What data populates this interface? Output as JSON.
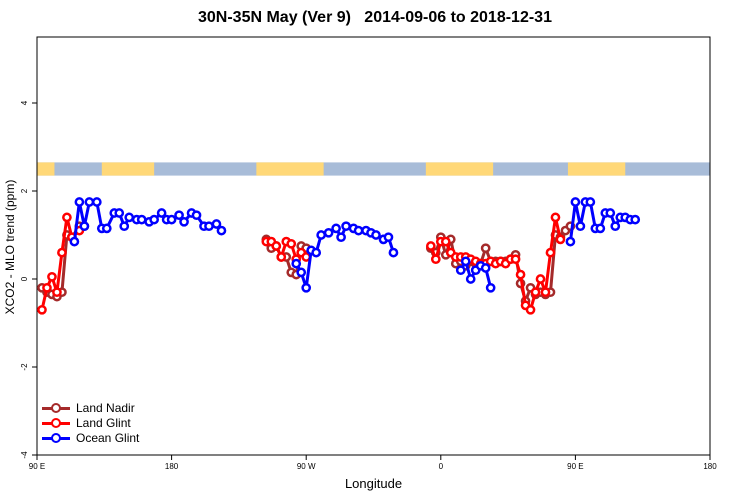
{
  "chart_data": {
    "type": "line",
    "title": "30N-35N May (Ver 9)   2014-09-06 to 2018-12-31",
    "xlabel": "Longitude",
    "ylabel": "XCO2 - MLO trend (ppm)",
    "xlim": [
      -90,
      180
    ],
    "ylim": [
      -4,
      5.5
    ],
    "x_ticks": [
      {
        "value": -90,
        "label": "90 E"
      },
      {
        "value": -36,
        "label": "180"
      },
      {
        "value": 18,
        "label": "90 W"
      },
      {
        "value": 72,
        "label": "0"
      },
      {
        "value": 126,
        "label": "90 E"
      },
      {
        "value": 180,
        "label": "180"
      }
    ],
    "y_ticks": [
      -4,
      -2,
      0,
      2,
      4
    ],
    "legend_position": "bottom-left",
    "colors": {
      "land_nadir": "#a52a2a",
      "land_glint": "#ff0000",
      "ocean_glint": "#0000ff",
      "land_strip": "#ffd878",
      "ocean_strip": "#a8bcd8"
    },
    "land_mask": {
      "y_range": [
        2.35,
        2.65
      ],
      "land_intervals": [
        [
          -90,
          -83
        ],
        [
          -64,
          -43
        ],
        [
          -2,
          25
        ],
        [
          66,
          93
        ],
        [
          123,
          146
        ]
      ]
    },
    "series": [
      {
        "name": "Land Nadir",
        "color": "#a52a2a",
        "segments": [
          [
            [
              -88,
              -0.2
            ],
            [
              -86,
              -0.3
            ],
            [
              -84,
              -0.35
            ],
            [
              -82,
              -0.4
            ],
            [
              -80,
              -0.3
            ],
            [
              -78,
              1.0
            ],
            [
              -76,
              0.95
            ],
            [
              -73,
              1.2
            ],
            [
              -71,
              1.2
            ]
          ],
          [
            [
              2,
              0.9
            ],
            [
              4,
              0.7
            ],
            [
              6,
              0.75
            ],
            [
              8,
              0.5
            ],
            [
              10,
              0.5
            ],
            [
              12,
              0.15
            ],
            [
              14,
              0.1
            ],
            [
              16,
              0.75
            ],
            [
              18,
              0.7
            ]
          ],
          [
            [
              68,
              0.7
            ],
            [
              70,
              0.6
            ],
            [
              72,
              0.95
            ],
            [
              74,
              0.55
            ],
            [
              76,
              0.9
            ],
            [
              78,
              0.35
            ],
            [
              80,
              0.4
            ],
            [
              82,
              0.3
            ],
            [
              84,
              0.4
            ],
            [
              86,
              0.35
            ],
            [
              88,
              0.35
            ],
            [
              90,
              0.7
            ],
            [
              92,
              0.4
            ],
            [
              94,
              0.4
            ],
            [
              96,
              0.4
            ],
            [
              98,
              0.4
            ],
            [
              100,
              0.45
            ],
            [
              102,
              0.55
            ],
            [
              104,
              -0.1
            ],
            [
              106,
              -0.5
            ],
            [
              108,
              -0.2
            ],
            [
              110,
              -0.35
            ],
            [
              112,
              -0.3
            ],
            [
              114,
              -0.35
            ],
            [
              116,
              -0.3
            ],
            [
              118,
              1.0
            ],
            [
              120,
              0.95
            ],
            [
              122,
              1.1
            ],
            [
              124,
              1.2
            ]
          ]
        ]
      },
      {
        "name": "Land Glint",
        "color": "#ff0000",
        "segments": [
          [
            [
              -88,
              -0.7
            ],
            [
              -86,
              -0.2
            ],
            [
              -84,
              0.05
            ],
            [
              -82,
              -0.3
            ],
            [
              -80,
              0.6
            ],
            [
              -78,
              1.4
            ],
            [
              -76,
              0.95
            ],
            [
              -73,
              1.1
            ]
          ],
          [
            [
              2,
              0.85
            ],
            [
              4,
              0.85
            ],
            [
              6,
              0.75
            ],
            [
              8,
              0.5
            ],
            [
              10,
              0.85
            ],
            [
              12,
              0.8
            ],
            [
              14,
              0.45
            ],
            [
              16,
              0.6
            ],
            [
              18,
              0.5
            ]
          ],
          [
            [
              68,
              0.75
            ],
            [
              70,
              0.45
            ],
            [
              72,
              0.85
            ],
            [
              74,
              0.85
            ],
            [
              76,
              0.6
            ],
            [
              78,
              0.5
            ],
            [
              80,
              0.5
            ],
            [
              82,
              0.5
            ],
            [
              84,
              0.45
            ],
            [
              86,
              0.4
            ],
            [
              88,
              0.35
            ],
            [
              90,
              0.35
            ],
            [
              92,
              0.4
            ],
            [
              94,
              0.35
            ],
            [
              96,
              0.4
            ],
            [
              98,
              0.35
            ],
            [
              100,
              0.45
            ],
            [
              102,
              0.45
            ],
            [
              104,
              0.1
            ],
            [
              106,
              -0.6
            ],
            [
              108,
              -0.7
            ],
            [
              110,
              -0.3
            ],
            [
              112,
              0.0
            ],
            [
              114,
              -0.3
            ],
            [
              116,
              0.6
            ],
            [
              118,
              1.4
            ],
            [
              120,
              0.9
            ]
          ]
        ]
      },
      {
        "name": "Ocean Glint",
        "color": "#0000ff",
        "segments": [
          [
            [
              -75,
              0.85
            ],
            [
              -73,
              1.75
            ],
            [
              -71,
              1.2
            ],
            [
              -69,
              1.75
            ],
            [
              -66,
              1.75
            ],
            [
              -64,
              1.15
            ],
            [
              -62,
              1.15
            ],
            [
              -59,
              1.5
            ],
            [
              -57,
              1.5
            ],
            [
              -55,
              1.2
            ],
            [
              -53,
              1.4
            ],
            [
              -50,
              1.35
            ],
            [
              -48,
              1.35
            ],
            [
              -45,
              1.3
            ],
            [
              -43,
              1.35
            ],
            [
              -40,
              1.5
            ],
            [
              -38,
              1.35
            ],
            [
              -36,
              1.35
            ],
            [
              -33,
              1.45
            ],
            [
              -31,
              1.3
            ],
            [
              -28,
              1.5
            ],
            [
              -26,
              1.45
            ],
            [
              -23,
              1.2
            ],
            [
              -21,
              1.2
            ],
            [
              -18,
              1.25
            ],
            [
              -16,
              1.1
            ]
          ],
          [
            [
              14,
              0.35
            ],
            [
              16,
              0.15
            ],
            [
              18,
              -0.2
            ],
            [
              20,
              0.65
            ],
            [
              22,
              0.6
            ],
            [
              24,
              1.0
            ],
            [
              27,
              1.05
            ],
            [
              30,
              1.15
            ],
            [
              32,
              0.95
            ],
            [
              34,
              1.2
            ],
            [
              37,
              1.15
            ],
            [
              39,
              1.1
            ],
            [
              42,
              1.1
            ],
            [
              44,
              1.05
            ],
            [
              46,
              1.0
            ],
            [
              49,
              0.9
            ],
            [
              51,
              0.95
            ],
            [
              53,
              0.6
            ]
          ],
          [
            [
              80,
              0.2
            ],
            [
              82,
              0.4
            ],
            [
              84,
              0.0
            ],
            [
              86,
              0.2
            ],
            [
              88,
              0.3
            ],
            [
              90,
              0.25
            ],
            [
              92,
              -0.2
            ]
          ],
          [
            [
              124,
              0.85
            ],
            [
              126,
              1.75
            ],
            [
              128,
              1.2
            ],
            [
              130,
              1.75
            ],
            [
              132,
              1.75
            ],
            [
              134,
              1.15
            ],
            [
              136,
              1.15
            ],
            [
              138,
              1.5
            ],
            [
              140,
              1.5
            ],
            [
              142,
              1.2
            ],
            [
              144,
              1.4
            ],
            [
              146,
              1.4
            ],
            [
              148,
              1.35
            ],
            [
              150,
              1.35
            ]
          ]
        ]
      }
    ]
  }
}
